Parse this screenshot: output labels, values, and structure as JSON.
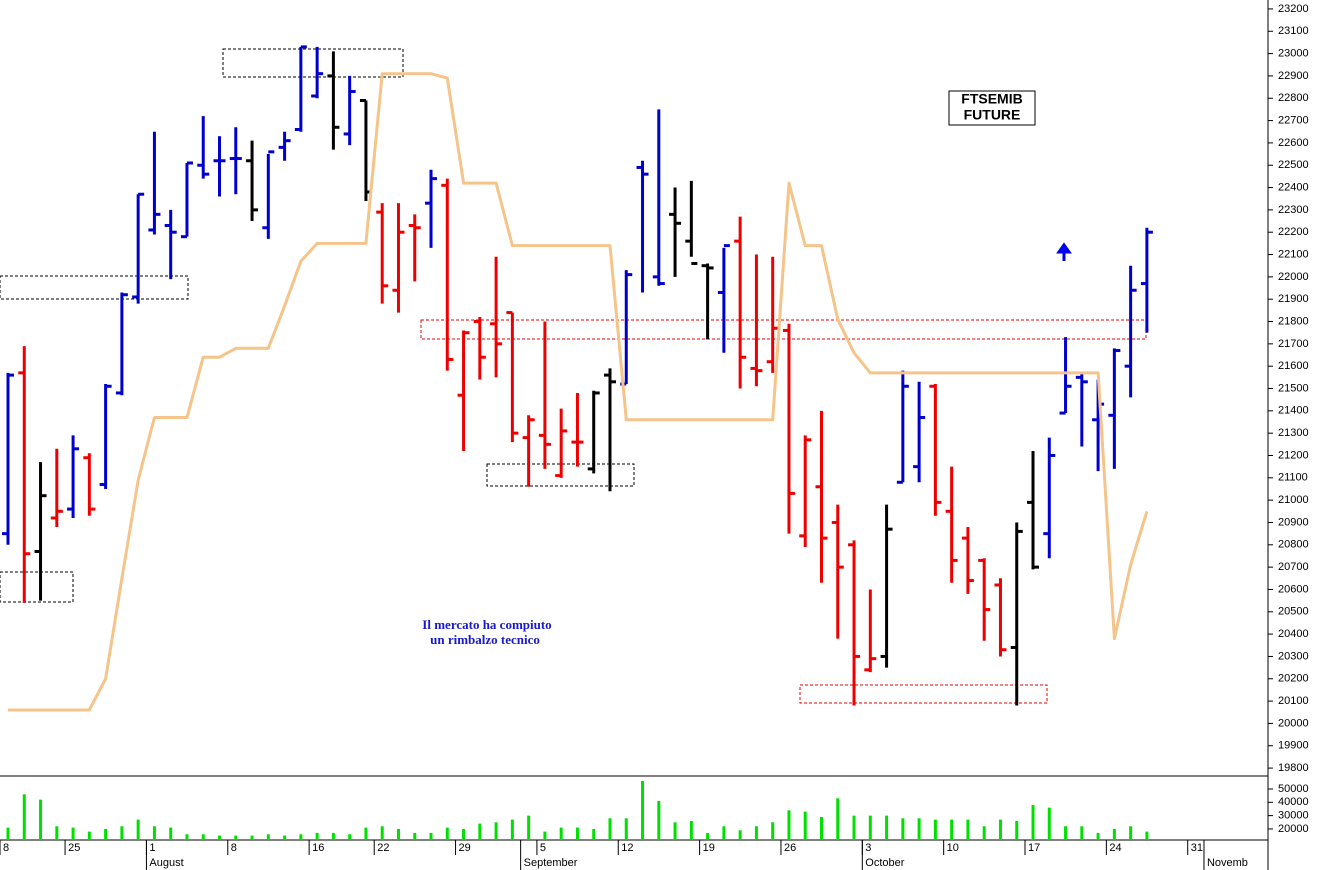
{
  "chart_data": [
    {
      "type": "ohlc",
      "title": "FTSEMIB",
      "subtitle": "FUTURE",
      "annotations": [
        "Il mercato ha compiuto",
        "un rimbalzo tecnico"
      ],
      "categories": [
        "8",
        null,
        null,
        null,
        "25",
        null,
        null,
        null,
        null,
        "1",
        null,
        null,
        null,
        null,
        "8",
        null,
        null,
        null,
        null,
        "16",
        null,
        null,
        null,
        "22",
        null,
        null,
        null,
        null,
        "29",
        null,
        null,
        null,
        null,
        "5",
        null,
        null,
        null,
        null,
        "12",
        null,
        null,
        null,
        null,
        "19",
        null,
        null,
        null,
        null,
        "26",
        null,
        null,
        null,
        null,
        "3",
        null,
        null,
        null,
        null,
        "10",
        null,
        null,
        null,
        null,
        "17",
        null,
        null,
        null,
        null,
        "24",
        null,
        null,
        null,
        null,
        "31",
        null,
        null
      ],
      "months": [
        null,
        null,
        null,
        null,
        null,
        null,
        null,
        null,
        null,
        "August",
        null,
        null,
        null,
        null,
        null,
        null,
        null,
        null,
        null,
        null,
        null,
        null,
        null,
        null,
        null,
        null,
        null,
        null,
        null,
        null,
        null,
        null,
        "September",
        null,
        null,
        null,
        null,
        null,
        null,
        null,
        null,
        null,
        null,
        null,
        null,
        null,
        null,
        null,
        null,
        null,
        null,
        null,
        null,
        "October",
        null,
        null,
        null,
        null,
        null,
        null,
        null,
        null,
        null,
        null,
        null,
        null,
        null,
        null,
        null,
        null,
        null,
        null,
        null,
        null,
        "Novemb",
        null
      ],
      "open": [
        20850,
        21570,
        20770,
        20920,
        20960,
        21190,
        21070,
        21480,
        21910,
        22210,
        22230,
        22180,
        22500,
        22520,
        22530,
        22520,
        22220,
        22580,
        22660,
        22810,
        22900,
        22640,
        22790,
        22290,
        21940,
        22230,
        22330,
        22410,
        21470,
        21800,
        21790,
        21840,
        21280,
        21290,
        21110,
        21260,
        21140,
        21560,
        21520,
        22490,
        22000,
        22280,
        22160,
        22050,
        21930,
        22160,
        21590,
        21620,
        21760,
        20840,
        21060,
        20900,
        20800,
        20240,
        20300,
        21080,
        21150,
        21510,
        20950,
        20830,
        20730,
        20620,
        20340,
        20990,
        20850,
        21390,
        21550,
        21360,
        21380,
        21600,
        21970,
        null,
        null,
        null,
        null,
        null
      ],
      "high": [
        21570,
        21690,
        21170,
        21230,
        21290,
        21210,
        21520,
        21930,
        22370,
        22650,
        22300,
        22510,
        22720,
        22630,
        22670,
        22610,
        22550,
        22650,
        23030,
        23030,
        23010,
        22900,
        22790,
        22330,
        22330,
        22280,
        22480,
        22440,
        21760,
        21820,
        22090,
        21840,
        21380,
        21800,
        21410,
        21480,
        21490,
        21590,
        22030,
        22520,
        22750,
        22400,
        22430,
        22060,
        22130,
        22270,
        22100,
        22090,
        21790,
        21290,
        21400,
        20980,
        20820,
        20600,
        20980,
        21580,
        21530,
        21520,
        21150,
        20880,
        20740,
        20650,
        20900,
        21220,
        21280,
        21730,
        21570,
        21540,
        21680,
        22050,
        22220,
        null,
        null,
        null,
        null,
        null
      ],
      "low": [
        20800,
        20540,
        20550,
        20880,
        20920,
        20930,
        21050,
        21470,
        21880,
        22190,
        21990,
        22180,
        22440,
        22360,
        22370,
        22250,
        22170,
        22520,
        22650,
        22800,
        22570,
        22590,
        22340,
        21880,
        21840,
        21980,
        22130,
        21580,
        21220,
        21540,
        21550,
        21260,
        21060,
        21140,
        21100,
        21150,
        21120,
        21040,
        21520,
        21930,
        21960,
        22000,
        22090,
        21720,
        21660,
        21500,
        21510,
        21570,
        20850,
        20790,
        20630,
        20380,
        20080,
        20230,
        20250,
        21080,
        21080,
        20930,
        20630,
        20580,
        20370,
        20300,
        20080,
        20690,
        20740,
        21390,
        21240,
        21130,
        21140,
        21460,
        21750,
        null,
        null,
        null,
        null,
        null
      ],
      "close": [
        21560,
        20760,
        21020,
        20950,
        21230,
        20960,
        21510,
        21920,
        22370,
        22280,
        22200,
        22510,
        22460,
        22520,
        22530,
        22300,
        22560,
        22610,
        23030,
        22910,
        22670,
        22830,
        22380,
        21960,
        22200,
        22220,
        22440,
        21630,
        21750,
        21640,
        21700,
        21300,
        21360,
        21250,
        21310,
        21260,
        21480,
        21530,
        22010,
        22460,
        21970,
        22240,
        22060,
        22040,
        22140,
        21640,
        21580,
        21770,
        21030,
        21270,
        20830,
        20700,
        20300,
        20290,
        20870,
        21510,
        21370,
        20990,
        20730,
        20640,
        20510,
        20330,
        20860,
        20700,
        21200,
        21510,
        21530,
        21430,
        21670,
        21940,
        22200,
        null,
        null,
        null,
        null,
        null
      ],
      "bar_colors": [
        "#0000cc",
        "#ee0000",
        "#000000",
        "#ee0000",
        "#0000cc",
        "#ee0000",
        "#0000cc",
        "#0000cc",
        "#0000cc",
        "#0000cc",
        "#0000cc",
        "#0000cc",
        "#0000cc",
        "#0000cc",
        "#0000cc",
        "#000000",
        "#0000cc",
        "#0000cc",
        "#0000cc",
        "#0000cc",
        "#000000",
        "#0000cc",
        "#000000",
        "#ee0000",
        "#ee0000",
        "#ee0000",
        "#0000cc",
        "#ee0000",
        "#ee0000",
        "#ee0000",
        "#ee0000",
        "#ee0000",
        "#ee0000",
        "#ee0000",
        "#ee0000",
        "#ee0000",
        "#000000",
        "#000000",
        "#0000cc",
        "#0000cc",
        "#0000cc",
        "#000000",
        "#000000",
        "#000000",
        "#0000cc",
        "#ee0000",
        "#ee0000",
        "#ee0000",
        "#ee0000",
        "#ee0000",
        "#ee0000",
        "#ee0000",
        "#ee0000",
        "#ee0000",
        "#000000",
        "#0000cc",
        "#0000cc",
        "#ee0000",
        "#ee0000",
        "#ee0000",
        "#ee0000",
        "#ee0000",
        "#000000",
        "#000000",
        "#0000cc",
        "#0000cc",
        "#0000cc",
        "#0000cc",
        "#0000cc",
        "#0000cc",
        "#0000cc",
        null,
        null,
        null,
        null,
        null
      ],
      "series": [
        {
          "color": "#f5c48a",
          "values": [
            20060,
            20060,
            20060,
            20060,
            20060,
            20060,
            20200,
            20650,
            21090,
            21370,
            21370,
            21370,
            21640,
            21640,
            21680,
            21680,
            21680,
            21870,
            22070,
            22150,
            22150,
            22150,
            22150,
            22910,
            22910,
            22910,
            22910,
            22890,
            22420,
            22420,
            22420,
            22140,
            22140,
            22140,
            22140,
            22140,
            22140,
            22140,
            21360,
            21360,
            21360,
            21360,
            21360,
            21360,
            21360,
            21360,
            21360,
            21360,
            22420,
            22140,
            22140,
            21810,
            21660,
            21570,
            21570,
            21570,
            21570,
            21570,
            21570,
            21570,
            21570,
            21570,
            21570,
            21570,
            21570,
            21570,
            21570,
            21570,
            20380,
            20710,
            20950,
            null,
            null,
            null,
            null,
            null
          ]
        }
      ],
      "ylim": [
        19769,
        23240
      ],
      "yticks": [
        19800,
        19900,
        20000,
        20100,
        20200,
        20300,
        20400,
        20500,
        20600,
        20700,
        20800,
        20900,
        21000,
        21100,
        21200,
        21300,
        21400,
        21500,
        21600,
        21700,
        21800,
        21900,
        22000,
        22100,
        22200,
        22300,
        22400,
        22500,
        22600,
        22700,
        22800,
        22900,
        23000,
        23100,
        23200
      ]
    },
    {
      "type": "bar",
      "color": "#00e000",
      "values": [
        21000,
        46000,
        42000,
        22000,
        21000,
        18000,
        20000,
        22000,
        27000,
        22000,
        21000,
        16000,
        16000,
        15000,
        15000,
        15000,
        16000,
        15000,
        16000,
        17000,
        17000,
        16000,
        21000,
        22000,
        20000,
        17000,
        17000,
        21000,
        20000,
        24000,
        25000,
        27000,
        30000,
        18000,
        21000,
        21000,
        20000,
        28000,
        28000,
        56000,
        41000,
        25000,
        26000,
        17000,
        22000,
        19000,
        22000,
        25000,
        34000,
        33000,
        29000,
        43000,
        30000,
        30000,
        30000,
        28000,
        28000,
        27000,
        27000,
        27000,
        22000,
        27000,
        26000,
        38000,
        36000,
        22000,
        22000,
        17000,
        20000,
        22000,
        18000,
        null,
        null,
        null,
        null,
        null
      ],
      "ylim": [
        11700,
        59000
      ],
      "yticks": [
        20000,
        30000,
        40000,
        50000
      ]
    }
  ]
}
